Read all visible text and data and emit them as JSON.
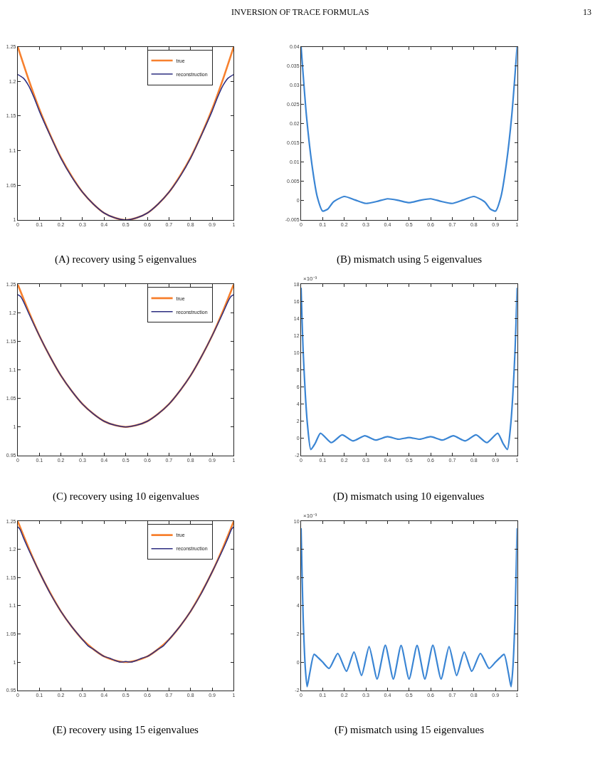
{
  "chart_data": [
    {
      "type": "line",
      "title": "(A) recovery using 5 eigenvalues",
      "annotations": [
        "INVERSION OF TRACE FORMULAS",
        "13"
      ],
      "xlim": [
        0,
        1
      ],
      "xticks": [
        0,
        0.1,
        0.2,
        0.3,
        0.4,
        0.5,
        0.6,
        0.7,
        0.8,
        0.9,
        1
      ],
      "ylim": [
        1,
        1.25
      ],
      "yticks": [
        1,
        1.05,
        1.1,
        1.15,
        1.2,
        1.25
      ],
      "legend": "top right",
      "series": [
        {
          "name": "true",
          "color": "#f7802e",
          "x": [
            0,
            0.05,
            0.1,
            0.15,
            0.2,
            0.25,
            0.3,
            0.35,
            0.4,
            0.45,
            0.5,
            0.55,
            0.6,
            0.65,
            0.7,
            0.75,
            0.8,
            0.85,
            0.9,
            0.95,
            1
          ],
          "values": [
            1.25,
            1.203,
            1.16,
            1.123,
            1.09,
            1.063,
            1.04,
            1.023,
            1.01,
            1.003,
            1,
            1.003,
            1.01,
            1.023,
            1.04,
            1.063,
            1.09,
            1.123,
            1.16,
            1.203,
            1.25
          ]
        },
        {
          "name": "reconstruction",
          "color": "#2d2e80",
          "x": [
            0,
            0.025,
            0.05,
            0.075,
            0.1,
            0.15,
            0.2,
            0.25,
            0.3,
            0.35,
            0.4,
            0.45,
            0.5,
            0.55,
            0.6,
            0.65,
            0.7,
            0.75,
            0.8,
            0.85,
            0.9,
            0.925,
            0.95,
            0.975,
            1
          ],
          "values": [
            1.21,
            1.205,
            1.194,
            1.177,
            1.157,
            1.122,
            1.089,
            1.062,
            1.04,
            1.023,
            1.01,
            1.003,
            1,
            1.003,
            1.01,
            1.023,
            1.04,
            1.062,
            1.089,
            1.122,
            1.157,
            1.177,
            1.194,
            1.205,
            1.21
          ]
        }
      ]
    },
    {
      "type": "line",
      "title": "(B) mismatch using 5 eigenvalues",
      "xlim": [
        0,
        1
      ],
      "xticks": [
        0,
        0.1,
        0.2,
        0.3,
        0.4,
        0.5,
        0.6,
        0.7,
        0.8,
        0.9,
        1
      ],
      "ylim": [
        -0.005,
        0.04
      ],
      "yticks": [
        -0.005,
        0,
        0.005,
        0.01,
        0.015,
        0.02,
        0.025,
        0.03,
        0.035,
        0.04
      ],
      "series": [
        {
          "color": "#3a85d4",
          "x": [
            0,
            0.025,
            0.05,
            0.075,
            0.1,
            0.125,
            0.15,
            0.2,
            0.25,
            0.3,
            0.35,
            0.4,
            0.45,
            0.5,
            0.55,
            0.6,
            0.65,
            0.7,
            0.75,
            0.8,
            0.85,
            0.875,
            0.9,
            0.925,
            0.95,
            0.975,
            1
          ],
          "values": [
            0.04,
            0.022,
            0.0095,
            0.001,
            -0.0027,
            -0.0021,
            -0.0003,
            0.0011,
            0.0002,
            -0.0007,
            -0.0002,
            0.0005,
            0.0001,
            -0.0005,
            0.0001,
            0.0005,
            -0.0002,
            -0.0007,
            0.0002,
            0.0011,
            -0.0003,
            -0.0021,
            -0.0027,
            0.001,
            0.0095,
            0.022,
            0.04
          ]
        }
      ]
    },
    {
      "type": "line",
      "title": "(C) recovery using 10 eigenvalues",
      "xlim": [
        0,
        1
      ],
      "xticks": [
        0,
        0.1,
        0.2,
        0.3,
        0.4,
        0.5,
        0.6,
        0.7,
        0.8,
        0.9,
        1
      ],
      "ylim": [
        0.95,
        1.25
      ],
      "yticks": [
        0.95,
        1,
        1.05,
        1.1,
        1.15,
        1.2,
        1.25
      ],
      "legend": "top right",
      "series": [
        {
          "name": "true",
          "color": "#f7802e",
          "x": [
            0,
            0.05,
            0.1,
            0.15,
            0.2,
            0.25,
            0.3,
            0.35,
            0.4,
            0.45,
            0.5,
            0.55,
            0.6,
            0.65,
            0.7,
            0.75,
            0.8,
            0.85,
            0.9,
            0.95,
            1
          ],
          "values": [
            1.25,
            1.203,
            1.16,
            1.123,
            1.09,
            1.063,
            1.04,
            1.023,
            1.01,
            1.003,
            1,
            1.003,
            1.01,
            1.023,
            1.04,
            1.063,
            1.09,
            1.123,
            1.16,
            1.203,
            1.25
          ]
        },
        {
          "name": "reconstruction",
          "color": "#2d2e80",
          "x": [
            0,
            0.0125,
            0.025,
            0.05,
            0.1,
            0.15,
            0.2,
            0.25,
            0.3,
            0.35,
            0.4,
            0.45,
            0.5,
            0.55,
            0.6,
            0.65,
            0.7,
            0.75,
            0.8,
            0.85,
            0.9,
            0.95,
            0.975,
            0.9875,
            1
          ],
          "values": [
            1.232,
            1.229,
            1.221,
            1.2,
            1.16,
            1.123,
            1.09,
            1.063,
            1.04,
            1.023,
            1.01,
            1.003,
            1,
            1.003,
            1.01,
            1.023,
            1.04,
            1.063,
            1.09,
            1.123,
            1.16,
            1.2,
            1.221,
            1.229,
            1.232
          ]
        }
      ]
    },
    {
      "type": "line",
      "title": "(D) mismatch using 10 eigenvalues",
      "annotations": [
        "×10⁻³"
      ],
      "xlim": [
        0,
        1
      ],
      "xticks": [
        0,
        0.1,
        0.2,
        0.3,
        0.4,
        0.5,
        0.6,
        0.7,
        0.8,
        0.9,
        1
      ],
      "ylim": [
        -2,
        18
      ],
      "yticks": [
        -2,
        0,
        2,
        4,
        6,
        8,
        10,
        12,
        14,
        16,
        18
      ],
      "series": [
        {
          "color": "#3a85d4",
          "x": [
            0,
            0.005,
            0.01,
            0.02,
            0.03,
            0.045,
            0.065,
            0.09,
            0.14,
            0.19,
            0.24,
            0.295,
            0.345,
            0.4,
            0.45,
            0.5,
            0.55,
            0.6,
            0.655,
            0.705,
            0.76,
            0.81,
            0.86,
            0.91,
            0.935,
            0.955,
            0.97,
            0.98,
            0.99,
            0.995,
            1
          ],
          "values": [
            17.6,
            13.5,
            10,
            5,
            1.5,
            -1.3,
            -0.6,
            0.6,
            -0.5,
            0.4,
            -0.3,
            0.3,
            -0.2,
            0.2,
            -0.1,
            0.1,
            -0.1,
            0.2,
            -0.2,
            0.3,
            -0.3,
            0.4,
            -0.5,
            0.6,
            -0.6,
            -1.3,
            1.5,
            5,
            10,
            13.5,
            17.6
          ]
        }
      ]
    },
    {
      "type": "line",
      "title": "(E) recovery using 15 eigenvalues",
      "xlim": [
        0,
        1
      ],
      "xticks": [
        0,
        0.1,
        0.2,
        0.3,
        0.4,
        0.5,
        0.6,
        0.7,
        0.8,
        0.9,
        1
      ],
      "ylim": [
        0.95,
        1.25
      ],
      "yticks": [
        0.95,
        1,
        1.05,
        1.1,
        1.15,
        1.2,
        1.25
      ],
      "legend": "top right",
      "series": [
        {
          "name": "true",
          "color": "#f7802e",
          "x": [
            0,
            0.05,
            0.1,
            0.15,
            0.2,
            0.25,
            0.3,
            0.35,
            0.4,
            0.45,
            0.5,
            0.55,
            0.6,
            0.65,
            0.7,
            0.75,
            0.8,
            0.85,
            0.9,
            0.95,
            1
          ],
          "values": [
            1.25,
            1.203,
            1.16,
            1.123,
            1.09,
            1.063,
            1.04,
            1.023,
            1.01,
            1.003,
            1,
            1.003,
            1.01,
            1.023,
            1.04,
            1.063,
            1.09,
            1.123,
            1.16,
            1.203,
            1.25
          ]
        },
        {
          "name": "reconstruction",
          "color": "#2d2e80",
          "x": [
            0,
            0.01,
            0.025,
            0.05,
            0.1,
            0.15,
            0.2,
            0.25,
            0.3,
            0.325,
            0.35,
            0.375,
            0.4,
            0.425,
            0.45,
            0.475,
            0.5,
            0.525,
            0.55,
            0.575,
            0.6,
            0.625,
            0.65,
            0.675,
            0.7,
            0.75,
            0.8,
            0.85,
            0.9,
            0.95,
            0.975,
            0.99,
            1
          ],
          "values": [
            1.24,
            1.236,
            1.222,
            1.2,
            1.16,
            1.122,
            1.09,
            1.063,
            1.04,
            1.029,
            1.023,
            1.016,
            1.01,
            1.007,
            1.003,
            1,
            1.001,
            1,
            1.003,
            1.007,
            1.01,
            1.016,
            1.023,
            1.029,
            1.04,
            1.063,
            1.09,
            1.122,
            1.16,
            1.2,
            1.222,
            1.236,
            1.24
          ]
        }
      ]
    },
    {
      "type": "line",
      "title": "(F) mismatch using 15 eigenvalues",
      "annotations": [
        "×10⁻³"
      ],
      "xlim": [
        0,
        1
      ],
      "xticks": [
        0,
        0.1,
        0.2,
        0.3,
        0.4,
        0.5,
        0.6,
        0.7,
        0.8,
        0.9,
        1
      ],
      "ylim": [
        -2,
        10
      ],
      "yticks": [
        -2,
        0,
        2,
        4,
        6,
        8,
        10
      ],
      "series": [
        {
          "color": "#3a85d4",
          "x": [
            0,
            0.005,
            0.01,
            0.02,
            0.028,
            0.04,
            0.06,
            0.08,
            0.1,
            0.13,
            0.17,
            0.21,
            0.245,
            0.28,
            0.315,
            0.352,
            0.39,
            0.427,
            0.463,
            0.5,
            0.537,
            0.573,
            0.61,
            0.648,
            0.685,
            0.72,
            0.755,
            0.79,
            0.83,
            0.87,
            0.9,
            0.92,
            0.94,
            0.96,
            0.972,
            0.98,
            0.99,
            0.995,
            1
          ],
          "values": [
            9.5,
            6,
            3,
            -0.5,
            -1.75,
            -0.8,
            0.55,
            0.3,
            0,
            -0.45,
            0.62,
            -0.65,
            0.72,
            -0.95,
            1.1,
            -1.2,
            1.2,
            -1.2,
            1.18,
            -1.2,
            1.18,
            -1.2,
            1.2,
            -1.2,
            1.1,
            -0.95,
            0.72,
            -0.65,
            0.62,
            -0.45,
            0,
            0.3,
            0.55,
            -0.8,
            -1.75,
            -0.5,
            3,
            6,
            9.5
          ]
        }
      ]
    }
  ]
}
